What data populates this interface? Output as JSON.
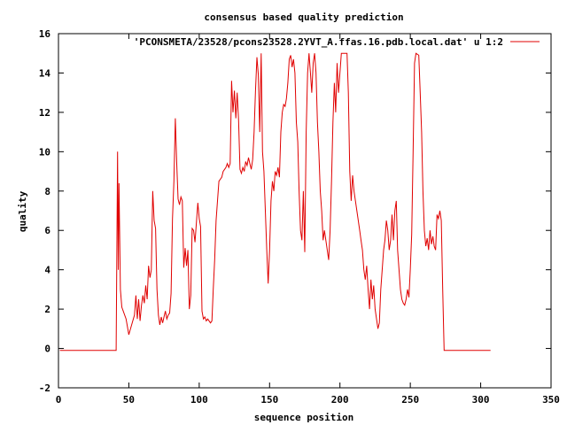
{
  "chart_data": {
    "type": "line",
    "title": "consensus based quality prediction",
    "xlabel": "sequence position",
    "ylabel": "quality",
    "xlim": [
      0,
      350
    ],
    "ylim": [
      -2,
      16
    ],
    "xticks": [
      0,
      50,
      100,
      150,
      200,
      250,
      300,
      350
    ],
    "yticks": [
      -2,
      0,
      2,
      4,
      6,
      8,
      10,
      12,
      14,
      16
    ],
    "legend_position": "top-right",
    "grid": false,
    "series": [
      {
        "name": "'PCONSMETA/23528/pcons23528.2YVT_A.ffas.16.pdb.local.dat' u 1:2",
        "color": "#e00000",
        "points": [
          [
            1,
            -0.1
          ],
          [
            10,
            -0.1
          ],
          [
            20,
            -0.1
          ],
          [
            30,
            -0.1
          ],
          [
            41,
            -0.1
          ],
          [
            42,
            10
          ],
          [
            42.5,
            4
          ],
          [
            43,
            8.4
          ],
          [
            44,
            3
          ],
          [
            45,
            2.1
          ],
          [
            46,
            1.9
          ],
          [
            48,
            1.5
          ],
          [
            50,
            0.7
          ],
          [
            52,
            1.2
          ],
          [
            54,
            1.7
          ],
          [
            55,
            2.7
          ],
          [
            56,
            1.5
          ],
          [
            57,
            2.5
          ],
          [
            58,
            1.4
          ],
          [
            59,
            2.2
          ],
          [
            60,
            2.7
          ],
          [
            61,
            2.3
          ],
          [
            62,
            3.2
          ],
          [
            63,
            2.5
          ],
          [
            64,
            4.2
          ],
          [
            65,
            3.6
          ],
          [
            66,
            4.0
          ],
          [
            67,
            8.0
          ],
          [
            68,
            6.5
          ],
          [
            69,
            6.1
          ],
          [
            70,
            3.0
          ],
          [
            71,
            1.7
          ],
          [
            72,
            1.2
          ],
          [
            73,
            1.6
          ],
          [
            74,
            1.3
          ],
          [
            75,
            1.6
          ],
          [
            76,
            1.9
          ],
          [
            77,
            1.5
          ],
          [
            78,
            1.7
          ],
          [
            79,
            1.8
          ],
          [
            80,
            2.8
          ],
          [
            81,
            6.6
          ],
          [
            82,
            8.5
          ],
          [
            83,
            11.7
          ],
          [
            84,
            9.5
          ],
          [
            85,
            7.6
          ],
          [
            86,
            7.3
          ],
          [
            87,
            7.7
          ],
          [
            88,
            7.5
          ],
          [
            89,
            4.1
          ],
          [
            90,
            5.1
          ],
          [
            91,
            4.2
          ],
          [
            92,
            5.0
          ],
          [
            93,
            2.0
          ],
          [
            94,
            2.7
          ],
          [
            95,
            6.1
          ],
          [
            96,
            6.0
          ],
          [
            97,
            5.4
          ],
          [
            98,
            6.4
          ],
          [
            99,
            7.4
          ],
          [
            100,
            6.6
          ],
          [
            101,
            6.2
          ],
          [
            102,
            1.9
          ],
          [
            103,
            1.5
          ],
          [
            104,
            1.6
          ],
          [
            105,
            1.4
          ],
          [
            106,
            1.5
          ],
          [
            107,
            1.4
          ],
          [
            108,
            1.3
          ],
          [
            109,
            1.4
          ],
          [
            110,
            3.0
          ],
          [
            111,
            4.5
          ],
          [
            112,
            6.5
          ],
          [
            113,
            7.5
          ],
          [
            114,
            8.5
          ],
          [
            116,
            8.7
          ],
          [
            117,
            9.0
          ],
          [
            118,
            9.1
          ],
          [
            119,
            9.2
          ],
          [
            120,
            9.4
          ],
          [
            121,
            9.2
          ],
          [
            122,
            9.4
          ],
          [
            123,
            13.6
          ],
          [
            124,
            12.0
          ],
          [
            125,
            13.1
          ],
          [
            126,
            11.7
          ],
          [
            127,
            13.0
          ],
          [
            128,
            11.6
          ],
          [
            129,
            9.1
          ],
          [
            130,
            8.9
          ],
          [
            131,
            9.2
          ],
          [
            132,
            9.0
          ],
          [
            133,
            9.5
          ],
          [
            134,
            9.3
          ],
          [
            135,
            9.7
          ],
          [
            136,
            9.4
          ],
          [
            137,
            9.1
          ],
          [
            138,
            9.6
          ],
          [
            139,
            11.0
          ],
          [
            140,
            13.1
          ],
          [
            141,
            14.8
          ],
          [
            142,
            13.9
          ],
          [
            143,
            11.0
          ],
          [
            144,
            15.0
          ],
          [
            145,
            10.0
          ],
          [
            146,
            9.0
          ],
          [
            147,
            7.0
          ],
          [
            148,
            5.0
          ],
          [
            149,
            3.3
          ],
          [
            150,
            5.0
          ],
          [
            151,
            7.5
          ],
          [
            152,
            8.5
          ],
          [
            153,
            8.0
          ],
          [
            154,
            9.0
          ],
          [
            155,
            8.8
          ],
          [
            156,
            9.2
          ],
          [
            157,
            8.7
          ],
          [
            158,
            11.0
          ],
          [
            159,
            12.0
          ],
          [
            160,
            12.4
          ],
          [
            161,
            12.3
          ],
          [
            162,
            12.7
          ],
          [
            163,
            13.5
          ],
          [
            164,
            14.7
          ],
          [
            165,
            14.9
          ],
          [
            166,
            14.3
          ],
          [
            167,
            14.7
          ],
          [
            168,
            14.0
          ],
          [
            169,
            11.5
          ],
          [
            170,
            10.5
          ],
          [
            171,
            8.0
          ],
          [
            172,
            6.0
          ],
          [
            173,
            5.5
          ],
          [
            174,
            8.0
          ],
          [
            175,
            4.9
          ],
          [
            176,
            11.0
          ],
          [
            177,
            14.0
          ],
          [
            178,
            15.0
          ],
          [
            179,
            14.0
          ],
          [
            180,
            13.0
          ],
          [
            181,
            14.5
          ],
          [
            182,
            15.0
          ],
          [
            183,
            14.0
          ],
          [
            184,
            11.5
          ],
          [
            185,
            10.0
          ],
          [
            186,
            8.0
          ],
          [
            187,
            7.0
          ],
          [
            188,
            5.5
          ],
          [
            189,
            6.0
          ],
          [
            190,
            5.5
          ],
          [
            191,
            5.0
          ],
          [
            192,
            4.5
          ],
          [
            193,
            6.0
          ],
          [
            194,
            8.5
          ],
          [
            195,
            11.5
          ],
          [
            196,
            13.5
          ],
          [
            197,
            12.0
          ],
          [
            198,
            14.5
          ],
          [
            199,
            13.0
          ],
          [
            200,
            14.0
          ],
          [
            201,
            15.0
          ],
          [
            205,
            15.0
          ],
          [
            206,
            13.0
          ],
          [
            207,
            9.0
          ],
          [
            208,
            7.5
          ],
          [
            209,
            8.8
          ],
          [
            210,
            8.0
          ],
          [
            211,
            7.5
          ],
          [
            212,
            7.0
          ],
          [
            213,
            6.5
          ],
          [
            214,
            6.0
          ],
          [
            215,
            5.5
          ],
          [
            216,
            5.0
          ],
          [
            217,
            4.0
          ],
          [
            218,
            3.5
          ],
          [
            219,
            4.2
          ],
          [
            220,
            3.0
          ],
          [
            221,
            2.0
          ],
          [
            222,
            3.5
          ],
          [
            223,
            2.5
          ],
          [
            224,
            3.2
          ],
          [
            225,
            2.0
          ],
          [
            226,
            1.5
          ],
          [
            227,
            1.0
          ],
          [
            228,
            1.3
          ],
          [
            229,
            3.0
          ],
          [
            230,
            4.0
          ],
          [
            231,
            5.0
          ],
          [
            232,
            5.5
          ],
          [
            233,
            6.5
          ],
          [
            234,
            6.0
          ],
          [
            235,
            5.0
          ],
          [
            236,
            5.5
          ],
          [
            237,
            6.8
          ],
          [
            238,
            5.5
          ],
          [
            239,
            7.0
          ],
          [
            240,
            7.5
          ],
          [
            241,
            5.0
          ],
          [
            242,
            4.0
          ],
          [
            243,
            3.0
          ],
          [
            244,
            2.5
          ],
          [
            245,
            2.3
          ],
          [
            246,
            2.2
          ],
          [
            247,
            2.5
          ],
          [
            248,
            3.0
          ],
          [
            249,
            2.6
          ],
          [
            250,
            4.0
          ],
          [
            251,
            5.8
          ],
          [
            252,
            10.0
          ],
          [
            253,
            14.5
          ],
          [
            254,
            15.0
          ],
          [
            256,
            14.9
          ],
          [
            257,
            13.0
          ],
          [
            258,
            11.0
          ],
          [
            259,
            8.0
          ],
          [
            260,
            6.0
          ],
          [
            261,
            5.2
          ],
          [
            262,
            5.6
          ],
          [
            263,
            5.0
          ],
          [
            264,
            6.0
          ],
          [
            265,
            5.3
          ],
          [
            266,
            5.7
          ],
          [
            267,
            5.2
          ],
          [
            268,
            5.0
          ],
          [
            269,
            6.8
          ],
          [
            270,
            6.6
          ],
          [
            271,
            7.0
          ],
          [
            272,
            6.5
          ],
          [
            273,
            3.0
          ],
          [
            274,
            -0.1
          ],
          [
            280,
            -0.1
          ],
          [
            290,
            -0.1
          ],
          [
            300,
            -0.1
          ],
          [
            307,
            -0.1
          ]
        ]
      }
    ]
  }
}
